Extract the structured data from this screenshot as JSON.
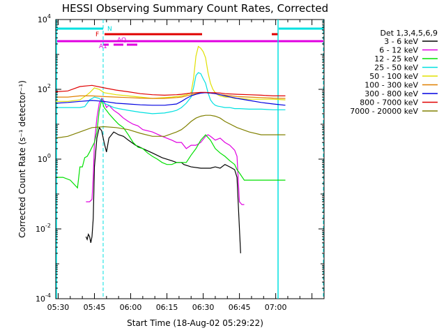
{
  "chart_data": {
    "type": "line",
    "title": "HESSI Observing Summary Count Rates, Corrected",
    "xlabel": "Start Time (18-Aug-02 05:29:22)",
    "ylabel": "Corrected Count Rate (s⁻¹ detector⁻¹)",
    "yscale": "log",
    "ylim": [
      0.0001,
      10000
    ],
    "xlim_minutes": [
      0,
      111
    ],
    "x_ticks": [
      {
        "t": 1,
        "label": "05:30"
      },
      {
        "t": 16,
        "label": "05:45"
      },
      {
        "t": 31,
        "label": "06:00"
      },
      {
        "t": 46,
        "label": "06:15"
      },
      {
        "t": 61,
        "label": "06:30"
      },
      {
        "t": 76,
        "label": "06:45"
      },
      {
        "t": 91,
        "label": "07:00"
      }
    ],
    "y_ticks": [
      {
        "v": 0.0001,
        "base": "10",
        "exp": "-4"
      },
      {
        "v": 0.01,
        "base": "10",
        "exp": "-2"
      },
      {
        "v": 1,
        "base": "10",
        "exp": "0"
      },
      {
        "v": 100,
        "base": "10",
        "exp": "2"
      },
      {
        "v": 10000,
        "base": "10",
        "exp": "4"
      }
    ],
    "legend_title": "Det 1,3,4,5,6,9",
    "series": [
      {
        "name": "3 - 6 keV",
        "color": "#000000",
        "x": [
          12.5,
          13,
          13.5,
          14,
          14.5,
          15,
          15.5,
          16,
          17,
          18,
          19,
          20,
          21,
          22,
          24,
          26,
          28,
          30,
          33,
          36,
          40,
          44,
          48,
          50,
          52,
          53,
          56,
          60,
          64,
          66,
          68,
          70,
          72,
          74,
          75,
          76,
          76.5
        ],
        "values": [
          0.006,
          0.005,
          0.007,
          0.006,
          0.004,
          0.006,
          0.02,
          0.6,
          4,
          8,
          6.5,
          3,
          1.6,
          4,
          6,
          5,
          4.5,
          3.5,
          2.5,
          2,
          1.5,
          1.1,
          0.9,
          0.8,
          0.8,
          0.7,
          0.6,
          0.55,
          0.55,
          0.6,
          0.55,
          0.7,
          0.6,
          0.5,
          0.3,
          0.01,
          0.002
        ]
      },
      {
        "name": "6 - 12 keV",
        "color": "#e000e0",
        "x": [
          12.5,
          14,
          15,
          15.5,
          16,
          17,
          18,
          19,
          20,
          21,
          22,
          24,
          26,
          28,
          30,
          32,
          34,
          36,
          40,
          44,
          48,
          50,
          52,
          54,
          56,
          58,
          60,
          62,
          63,
          64,
          66,
          68,
          70,
          72,
          74,
          75,
          76,
          77,
          78
        ],
        "values": [
          0.06,
          0.06,
          0.07,
          0.3,
          3,
          15,
          40,
          55,
          45,
          30,
          35,
          25,
          20,
          15,
          12,
          10,
          9,
          7,
          6,
          4.5,
          3.5,
          3,
          3,
          2,
          2.5,
          2.5,
          3,
          4.5,
          5,
          4.5,
          3.5,
          4,
          3,
          2.5,
          1.8,
          1.2,
          0.06,
          0.05,
          0.05
        ]
      },
      {
        "name": "12 - 25 keV",
        "color": "#00e000",
        "x": [
          0,
          3,
          6,
          9,
          10,
          11,
          12,
          13,
          14,
          15,
          16,
          17,
          18,
          19,
          20,
          21,
          22,
          24,
          26,
          28,
          30,
          32,
          34,
          36,
          38,
          40,
          42,
          44,
          46,
          48,
          50,
          52,
          54,
          56,
          58,
          60,
          62,
          64,
          66,
          68,
          70,
          72,
          74,
          75,
          76,
          78,
          80,
          84,
          88,
          92,
          95
        ],
        "values": [
          0.3,
          0.3,
          0.25,
          0.15,
          0.6,
          0.6,
          1.1,
          1.2,
          1.6,
          2.2,
          3,
          6,
          25,
          50,
          30,
          25,
          20,
          14,
          10,
          8,
          5,
          3,
          2.2,
          2,
          1.5,
          1.2,
          1.0,
          0.8,
          0.7,
          0.7,
          0.8,
          0.8,
          0.8,
          1.3,
          2,
          3.5,
          5,
          3.5,
          2,
          1.5,
          1.2,
          0.9,
          0.7,
          0.5,
          0.4,
          0.25,
          0.25,
          0.25,
          0.25,
          0.25,
          0.25
        ]
      },
      {
        "name": "25 - 50 keV",
        "color": "#00e0e0",
        "x": [
          0,
          5,
          10,
          12,
          13,
          14,
          16,
          18,
          20,
          22,
          24,
          26,
          30,
          35,
          40,
          45,
          48,
          50,
          52,
          54,
          56,
          57,
          58,
          59,
          60,
          61,
          62,
          63,
          64,
          65,
          66,
          67,
          68,
          70,
          72,
          74,
          76,
          80,
          85,
          90,
          95
        ],
        "values": [
          30,
          30,
          30,
          32,
          40,
          50,
          60,
          55,
          40,
          35,
          30,
          28,
          25,
          22,
          20,
          21,
          23,
          25,
          30,
          40,
          60,
          110,
          250,
          300,
          280,
          200,
          150,
          80,
          50,
          40,
          35,
          33,
          32,
          30,
          30,
          28,
          28,
          27,
          27,
          26,
          26
        ]
      },
      {
        "name": "50 - 100 keV",
        "color": "#e0e000",
        "x": [
          0,
          5,
          10,
          13,
          14,
          16,
          18,
          20,
          25,
          30,
          35,
          40,
          45,
          48,
          50,
          52,
          54,
          56,
          57,
          58,
          59,
          60,
          61,
          62,
          63,
          64,
          65,
          66,
          67,
          68,
          70,
          72,
          74,
          76,
          80,
          85,
          90,
          95
        ],
        "values": [
          45,
          45,
          50,
          70,
          80,
          110,
          100,
          80,
          70,
          65,
          60,
          55,
          58,
          60,
          62,
          65,
          70,
          80,
          200,
          900,
          1700,
          1500,
          1200,
          800,
          300,
          150,
          100,
          80,
          70,
          65,
          60,
          60,
          55,
          55,
          52,
          52,
          52,
          50
        ]
      },
      {
        "name": "100 - 300 keV",
        "color": "#e08000",
        "x": [
          0,
          5,
          10,
          15,
          20,
          25,
          30,
          35,
          40,
          45,
          50,
          52,
          54,
          56,
          58,
          60,
          62,
          64,
          66,
          68,
          70,
          75,
          80,
          85,
          90,
          95
        ],
        "values": [
          60,
          60,
          65,
          65,
          62,
          60,
          58,
          56,
          55,
          55,
          58,
          60,
          65,
          70,
          75,
          80,
          80,
          78,
          75,
          70,
          68,
          62,
          60,
          58,
          56,
          55
        ]
      },
      {
        "name": "300 - 800 keV",
        "color": "#0000e0",
        "x": [
          0,
          5,
          10,
          15,
          20,
          25,
          30,
          35,
          40,
          45,
          50,
          52,
          54,
          56,
          58,
          60,
          62,
          64,
          66,
          68,
          70,
          75,
          80,
          85,
          90,
          95
        ],
        "values": [
          40,
          42,
          45,
          48,
          45,
          40,
          38,
          36,
          35,
          35,
          38,
          45,
          55,
          65,
          72,
          78,
          80,
          78,
          75,
          70,
          65,
          55,
          48,
          42,
          38,
          35
        ]
      },
      {
        "name": "800 - 7000 keV",
        "color": "#e00000",
        "x": [
          0,
          5,
          10,
          15,
          20,
          25,
          30,
          35,
          40,
          45,
          50,
          52,
          54,
          56,
          58,
          60,
          62,
          64,
          66,
          68,
          70,
          75,
          80,
          85,
          90,
          95
        ],
        "values": [
          85,
          90,
          120,
          130,
          110,
          95,
          85,
          75,
          70,
          68,
          70,
          72,
          75,
          78,
          80,
          82,
          82,
          80,
          80,
          78,
          75,
          72,
          70,
          68,
          65,
          65
        ]
      },
      {
        "name": "7000 - 20000 keV",
        "color": "#808000",
        "x": [
          0,
          5,
          10,
          15,
          20,
          25,
          30,
          35,
          40,
          45,
          50,
          52,
          54,
          56,
          58,
          60,
          62,
          64,
          66,
          68,
          70,
          75,
          80,
          85,
          90,
          95
        ],
        "values": [
          4,
          4.5,
          6,
          8,
          8.5,
          8,
          7,
          5.5,
          4.5,
          4.5,
          6,
          7,
          9,
          12,
          15,
          17,
          18,
          18,
          17,
          15,
          12,
          8,
          6,
          5,
          5,
          5
        ]
      }
    ],
    "flag_labels": [
      "N",
      "F",
      "AQ",
      "A1"
    ]
  }
}
